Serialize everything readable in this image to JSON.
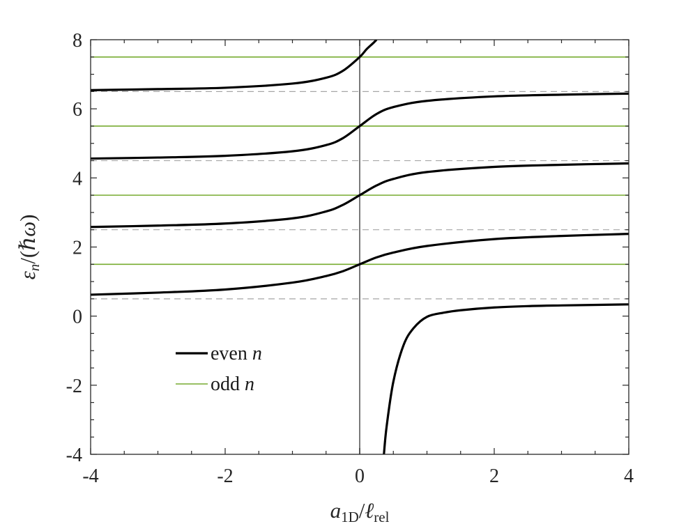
{
  "chart_data": {
    "type": "line",
    "title": "",
    "xlabel": "a_1D / ℓ_rel",
    "ylabel": "ε_n / (ℏω)",
    "xlim": [
      -4,
      4
    ],
    "ylim": [
      -4,
      8
    ],
    "x_ticks": [
      "-4",
      "-2",
      "0",
      "2",
      "4"
    ],
    "y_ticks": [
      "-4",
      "-2",
      "0",
      "2",
      "4",
      "6",
      "8"
    ],
    "grid": false,
    "legend_position": "lower-left",
    "colors": {
      "even": "#000000",
      "odd": "#77ac30",
      "dashed": "#a6a6a6",
      "vline": "#595959"
    },
    "legend": [
      {
        "label": "even",
        "var": "n",
        "style": "black-thick"
      },
      {
        "label": "odd",
        "var": "n",
        "style": "green-thin"
      }
    ],
    "odd_levels": [
      1.5,
      3.5,
      5.5,
      7.5
    ],
    "dashed_levels": [
      0.5,
      2.5,
      4.5,
      6.5
    ],
    "vertical_line_x": 0,
    "series": [
      {
        "name": "even n",
        "x": [
          -4,
          -3,
          -2,
          -1,
          -0.5,
          -0.25,
          0,
          0.25,
          0.5,
          1,
          2,
          3,
          4
        ],
        "y": [
          0.62,
          0.68,
          0.77,
          0.97,
          1.16,
          1.3,
          1.5,
          1.7,
          1.84,
          2.03,
          2.23,
          2.32,
          2.38
        ]
      },
      {
        "name": "even n",
        "x": [
          -4,
          -3,
          -2,
          -1,
          -0.5,
          -0.25,
          0,
          0.25,
          0.5,
          1,
          2,
          3,
          4
        ],
        "y": [
          2.58,
          2.62,
          2.68,
          2.83,
          3.03,
          3.22,
          3.5,
          3.78,
          3.97,
          4.17,
          4.32,
          4.38,
          4.42
        ]
      },
      {
        "name": "even n",
        "x": [
          -4,
          -3,
          -2,
          -1,
          -0.5,
          -0.25,
          0,
          0.25,
          0.5,
          1,
          2,
          3,
          4
        ],
        "y": [
          4.56,
          4.59,
          4.64,
          4.77,
          4.95,
          5.15,
          5.5,
          5.85,
          6.05,
          6.23,
          6.36,
          6.41,
          6.44
        ]
      },
      {
        "name": "even n",
        "x": [
          -4,
          -3,
          -2,
          -1,
          -0.5,
          -0.25,
          0,
          0.1,
          0.2,
          0.25
        ],
        "y": [
          6.54,
          6.57,
          6.61,
          6.73,
          6.9,
          7.1,
          7.5,
          7.72,
          7.9,
          8.0
        ]
      },
      {
        "name": "even n",
        "x": [
          0.36,
          0.4,
          0.5,
          0.65,
          0.8,
          1,
          1.25,
          1.5,
          2,
          2.5,
          3,
          4
        ],
        "y": [
          -4.0,
          -3.2,
          -1.9,
          -0.85,
          -0.35,
          -0.02,
          0.1,
          0.17,
          0.25,
          0.29,
          0.31,
          0.34
        ]
      }
    ]
  }
}
